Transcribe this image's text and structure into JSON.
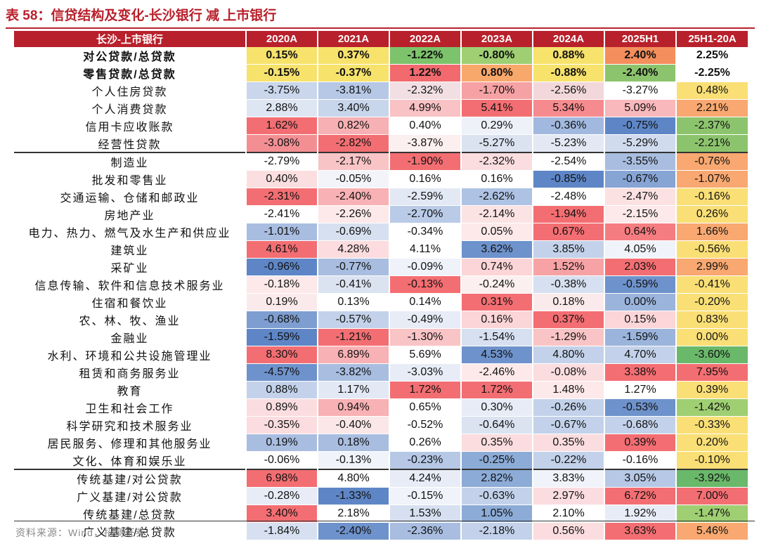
{
  "title": "表 58：信贷结构及变化-长沙银行 减 上市银行",
  "source": "资料来源：Wind，招商证券",
  "chart_data": {
    "type": "table",
    "columns": [
      "长沙-上市银行",
      "2020A",
      "2021A",
      "2022A",
      "2023A",
      "2024A",
      "2025H1",
      "25H1-20A"
    ],
    "rows": [
      {
        "label": "对公贷款/总贷款",
        "values": [
          "0.15%",
          "0.37%",
          "-1.22%",
          "-0.80%",
          "0.88%",
          "2.40%",
          "2.25%"
        ],
        "colors": [
          "#f7e26c",
          "#f7e26c",
          "#7dc36b",
          "#9fcf72",
          "#f7e26c",
          "#f58e5d",
          "#ffffff"
        ]
      },
      {
        "label": "零售贷款/总贷款",
        "values": [
          "-0.15%",
          "-0.37%",
          "1.22%",
          "0.80%",
          "-0.88%",
          "-2.40%",
          "-2.25%"
        ],
        "colors": [
          "#f7e26c",
          "#f7e26c",
          "#f26a6e",
          "#f8a86a",
          "#f7e26c",
          "#8cc46d",
          "#ffffff"
        ]
      },
      {
        "label": "个人住房贷款",
        "values": [
          "-3.75%",
          "-3.81%",
          "-2.32%",
          "-1.70%",
          "-2.56%",
          "-3.27%",
          "0.48%"
        ],
        "colors": [
          "#c9d6ec",
          "#b6c8e6",
          "#f1dfe3",
          "#f6a1a3",
          "#f2d7db",
          "#ffffff",
          "#f9df76"
        ]
      },
      {
        "label": "个人消费贷款",
        "values": [
          "2.88%",
          "3.40%",
          "4.99%",
          "5.41%",
          "5.34%",
          "5.09%",
          "2.21%"
        ],
        "colors": [
          "#dfe6f3",
          "#c8d6ec",
          "#f9c2c4",
          "#f36e72",
          "#f68b8f",
          "#f9b8bb",
          "#f8a870"
        ]
      },
      {
        "label": "信用卡应收账款",
        "values": [
          "1.62%",
          "0.82%",
          "0.40%",
          "0.29%",
          "-0.36%",
          "-0.75%",
          "-2.37%"
        ],
        "colors": [
          "#f36e72",
          "#f7b0b3",
          "#ffffff",
          "#eef1f8",
          "#a2b9df",
          "#5e86c7",
          "#8cc46d"
        ]
      },
      {
        "label": "经营性贷款",
        "values": [
          "-3.08%",
          "-2.82%",
          "-3.87%",
          "-5.27%",
          "-5.23%",
          "-5.29%",
          "-2.21%"
        ],
        "colors": [
          "#f38f93",
          "#f36e72",
          "#fcefef",
          "#dbe3f1",
          "#e3e9f4",
          "#d0dbee",
          "#8cc46d"
        ]
      },
      {
        "label": "制造业",
        "values": [
          "-2.79%",
          "-2.17%",
          "-1.90%",
          "-2.32%",
          "-2.54%",
          "-3.55%",
          "-0.76%"
        ],
        "colors": [
          "#ffffff",
          "#f9c4c6",
          "#f36e72",
          "#fbdddf",
          "#ffffff",
          "#a8bde0",
          "#f8a870"
        ]
      },
      {
        "label": "批发和零售业",
        "values": [
          "0.40%",
          "-0.05%",
          "0.16%",
          "0.16%",
          "-0.85%",
          "-0.67%",
          "-1.07%"
        ],
        "colors": [
          "#fbdfe0",
          "#f2f4f9",
          "#ffffff",
          "#ffffff",
          "#5e86c7",
          "#86a4d4",
          "#f8a870"
        ]
      },
      {
        "label": "交通运输、仓储和邮政业",
        "values": [
          "-2.31%",
          "-2.40%",
          "-2.59%",
          "-2.62%",
          "-2.48%",
          "-2.47%",
          "-0.16%"
        ],
        "colors": [
          "#f36e72",
          "#f8b1b4",
          "#e3e9f4",
          "#aec2e3",
          "#ffffff",
          "#fbe1e2",
          "#f9df76"
        ]
      },
      {
        "label": "房地产业",
        "values": [
          "-2.41%",
          "-2.26%",
          "-2.70%",
          "-2.14%",
          "-1.94%",
          "-2.15%",
          "0.26%"
        ],
        "colors": [
          "#ffffff",
          "#fde9ea",
          "#b9cbe7",
          "#fbe3e4",
          "#f36e72",
          "#fde9ea",
          "#f9df76"
        ]
      },
      {
        "label": "电力、热力、燃气及水生产和供应业",
        "values": [
          "-1.01%",
          "-0.69%",
          "-0.34%",
          "0.05%",
          "0.67%",
          "0.64%",
          "1.66%"
        ],
        "colors": [
          "#a8bde0",
          "#d6e0f0",
          "#ffffff",
          "#fde9ea",
          "#f36e72",
          "#f57d81",
          "#f8a870"
        ]
      },
      {
        "label": "建筑业",
        "values": [
          "4.61%",
          "4.28%",
          "4.11%",
          "3.62%",
          "3.85%",
          "4.05%",
          "-0.56%"
        ],
        "colors": [
          "#f36e72",
          "#fcdcde",
          "#ffffff",
          "#6e92cb",
          "#c3d2ea",
          "#f0f3f9",
          "#f9df76"
        ]
      },
      {
        "label": "采矿业",
        "values": [
          "-0.96%",
          "-0.77%",
          "-0.09%",
          "0.74%",
          "1.52%",
          "2.03%",
          "2.99%"
        ],
        "colors": [
          "#5e86c7",
          "#a8bde0",
          "#eff2f9",
          "#fbd5d7",
          "#f7a3a6",
          "#f36e72",
          "#f8a870"
        ]
      },
      {
        "label": "信息传输、软件和信息技术服务业",
        "values": [
          "-0.18%",
          "-0.41%",
          "-0.13%",
          "-0.24%",
          "-0.38%",
          "-0.59%",
          "-0.41%"
        ],
        "colors": [
          "#fde9ea",
          "#dbe3f1",
          "#f36e72",
          "#fcefef",
          "#d6e0f0",
          "#6e92cb",
          "#f9df76"
        ]
      },
      {
        "label": "住宿和餐饮业",
        "values": [
          "0.19%",
          "0.13%",
          "0.14%",
          "0.31%",
          "0.18%",
          "0.00%",
          "-0.20%"
        ],
        "colors": [
          "#fbeaec",
          "#ffffff",
          "#ffffff",
          "#f36e72",
          "#fbeaec",
          "#9bb4dc",
          "#f9df76"
        ]
      },
      {
        "label": "农、林、牧、渔业",
        "values": [
          "-0.68%",
          "-0.57%",
          "-0.49%",
          "0.16%",
          "0.37%",
          "0.15%",
          "0.83%"
        ],
        "colors": [
          "#7e9ed1",
          "#c3d2ea",
          "#e7ecf6",
          "#fbd5d7",
          "#f36e72",
          "#fbd5d7",
          "#f9df76"
        ]
      },
      {
        "label": "金融业",
        "values": [
          "-1.59%",
          "-1.21%",
          "-1.30%",
          "-1.54%",
          "-1.29%",
          "-1.59%",
          "0.00%"
        ],
        "colors": [
          "#5e86c7",
          "#f36e72",
          "#f9c4c6",
          "#d6e0f0",
          "#f9c4c6",
          "#9bb4dc",
          "#f9df76"
        ]
      },
      {
        "label": "水利、环境和公共设施管理业",
        "values": [
          "8.30%",
          "6.89%",
          "5.69%",
          "4.53%",
          "4.80%",
          "4.70%",
          "-3.60%"
        ],
        "colors": [
          "#f36e72",
          "#f8b1b4",
          "#ffffff",
          "#6e92cb",
          "#c3d2ea",
          "#c3d2ea",
          "#6ab86a"
        ]
      },
      {
        "label": "租赁和商务服务业",
        "values": [
          "-4.57%",
          "-3.82%",
          "-3.03%",
          "-2.46%",
          "-0.08%",
          "3.38%",
          "7.95%"
        ],
        "colors": [
          "#6e92cb",
          "#a8bde0",
          "#e7ecf6",
          "#fde9ea",
          "#fbdddf",
          "#f36e72",
          "#f36e72"
        ]
      },
      {
        "label": "教育",
        "values": [
          "0.88%",
          "1.17%",
          "1.72%",
          "1.72%",
          "1.48%",
          "1.27%",
          "0.39%"
        ],
        "colors": [
          "#c3d2ea",
          "#e3e9f4",
          "#f36e72",
          "#f36e72",
          "#fde9ea",
          "#ffffff",
          "#f9df76"
        ]
      },
      {
        "label": "卫生和社会工作",
        "values": [
          "0.89%",
          "0.94%",
          "0.65%",
          "0.30%",
          "-0.26%",
          "-0.53%",
          "-1.42%"
        ],
        "colors": [
          "#fbdddf",
          "#f8b1b4",
          "#ffffff",
          "#e7ecf6",
          "#c3d2ea",
          "#6e92cb",
          "#9fcf72"
        ]
      },
      {
        "label": "科学研究和技术服务业",
        "values": [
          "-0.35%",
          "-0.40%",
          "-0.52%",
          "-0.64%",
          "-0.67%",
          "-0.68%",
          "-0.33%"
        ],
        "colors": [
          "#fbdddf",
          "#fbe7e8",
          "#ffffff",
          "#dbe3f1",
          "#c3d2ea",
          "#c3d2ea",
          "#f9df76"
        ]
      },
      {
        "label": "居民服务、修理和其他服务业",
        "values": [
          "0.19%",
          "0.18%",
          "0.26%",
          "0.35%",
          "0.35%",
          "0.39%",
          "0.20%"
        ],
        "colors": [
          "#a8bde0",
          "#a8bde0",
          "#ffffff",
          "#fbdddf",
          "#fbdddf",
          "#f36e72",
          "#f9df76"
        ]
      },
      {
        "label": "文化、体育和娱乐业",
        "values": [
          "-0.06%",
          "-0.13%",
          "-0.23%",
          "-0.25%",
          "-0.22%",
          "-0.16%",
          "-0.10%"
        ],
        "colors": [
          "#ffffff",
          "#f0f3f9",
          "#b6c8e6",
          "#8cabd6",
          "#c3d2ea",
          "#ffffff",
          "#f9df76"
        ]
      },
      {
        "label": "传统基建/对公贷款",
        "values": [
          "6.98%",
          "4.80%",
          "4.24%",
          "2.82%",
          "3.83%",
          "3.05%",
          "-3.92%"
        ],
        "colors": [
          "#f36e72",
          "#ffffff",
          "#e7ecf6",
          "#8cabd6",
          "#f0f3f9",
          "#b6c8e6",
          "#6ab86a"
        ]
      },
      {
        "label": "广义基建/对公贷款",
        "values": [
          "-0.28%",
          "-1.33%",
          "-0.15%",
          "-0.63%",
          "2.97%",
          "6.72%",
          "7.00%"
        ],
        "colors": [
          "#e7ecf6",
          "#5e86c7",
          "#f0f3f9",
          "#c3d2ea",
          "#fbdddf",
          "#f36e72",
          "#f36e72"
        ]
      },
      {
        "label": "传统基建/总贷款",
        "values": [
          "3.40%",
          "2.18%",
          "1.53%",
          "1.05%",
          "2.10%",
          "1.92%",
          "-1.47%"
        ],
        "colors": [
          "#f36e72",
          "#ffffff",
          "#d6e0f0",
          "#8cabd6",
          "#ffffff",
          "#e7ecf6",
          "#9fcf72"
        ]
      },
      {
        "label": "广义基建/总贷款",
        "values": [
          "-1.84%",
          "-2.40%",
          "-2.36%",
          "-2.18%",
          "0.56%",
          "3.63%",
          "5.46%"
        ],
        "colors": [
          "#d6e0f0",
          "#6e92cb",
          "#a8bde0",
          "#c3d2ea",
          "#fbdddf",
          "#f36e72",
          "#f8a870"
        ]
      }
    ]
  }
}
